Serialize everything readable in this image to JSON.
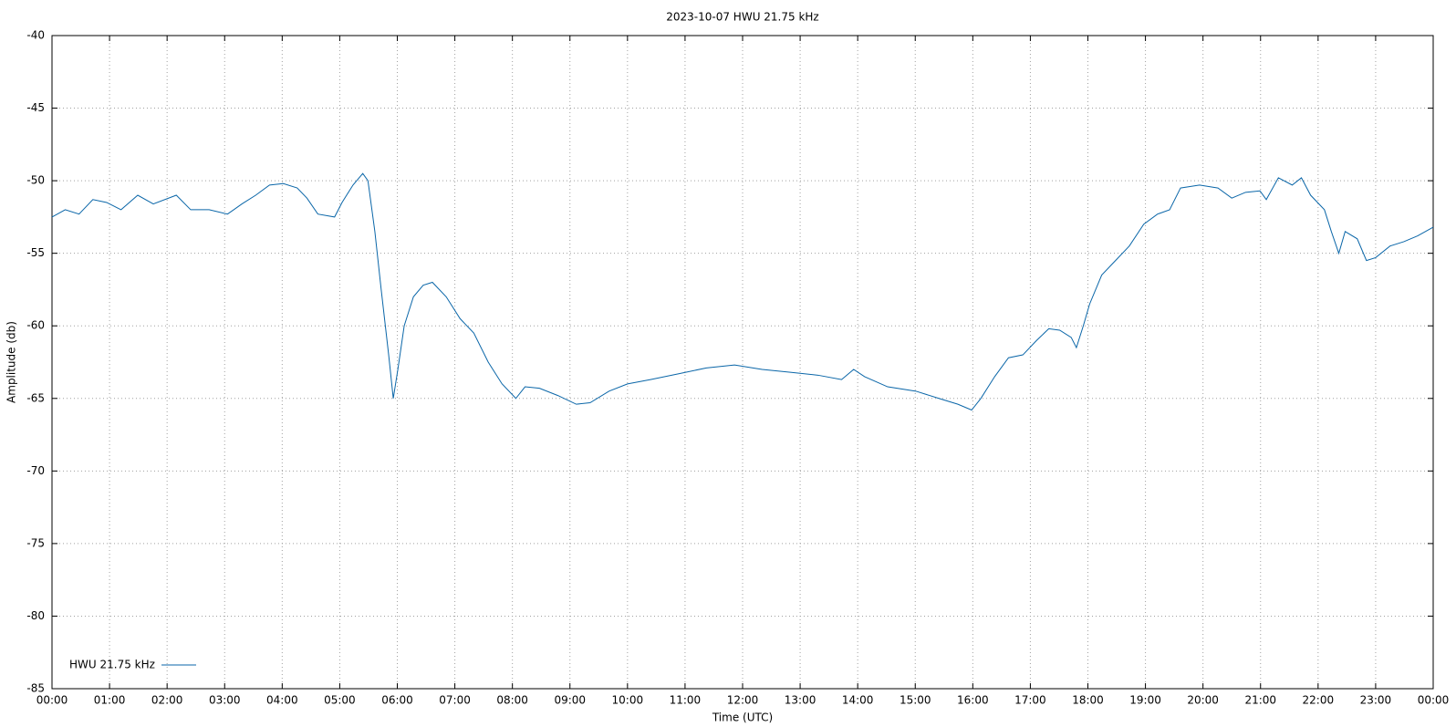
{
  "chart_data": {
    "type": "line",
    "title": "2023-10-07 HWU 21.75 kHz",
    "x_label": "Time (UTC)",
    "y_label": "Amplitude (db)",
    "xlim": [
      0,
      24
    ],
    "ylim": [
      -85,
      -40
    ],
    "xticks": [
      {
        "value": 0,
        "label": "00:00"
      },
      {
        "value": 1,
        "label": "01:00"
      },
      {
        "value": 2,
        "label": "02:00"
      },
      {
        "value": 3,
        "label": "03:00"
      },
      {
        "value": 4,
        "label": "04:00"
      },
      {
        "value": 5,
        "label": "05:00"
      },
      {
        "value": 6,
        "label": "06:00"
      },
      {
        "value": 7,
        "label": "07:00"
      },
      {
        "value": 8,
        "label": "08:00"
      },
      {
        "value": 9,
        "label": "09:00"
      },
      {
        "value": 10,
        "label": "10:00"
      },
      {
        "value": 11,
        "label": "11:00"
      },
      {
        "value": 12,
        "label": "12:00"
      },
      {
        "value": 13,
        "label": "13:00"
      },
      {
        "value": 14,
        "label": "14:00"
      },
      {
        "value": 15,
        "label": "15:00"
      },
      {
        "value": 16,
        "label": "16:00"
      },
      {
        "value": 17,
        "label": "17:00"
      },
      {
        "value": 18,
        "label": "18:00"
      },
      {
        "value": 19,
        "label": "19:00"
      },
      {
        "value": 20,
        "label": "20:00"
      },
      {
        "value": 21,
        "label": "21:00"
      },
      {
        "value": 22,
        "label": "22:00"
      },
      {
        "value": 23,
        "label": "23:00"
      },
      {
        "value": 24,
        "label": "00:00"
      }
    ],
    "yticks": [
      -40,
      -45,
      -50,
      -55,
      -60,
      -65,
      -70,
      -75,
      -80,
      -85
    ],
    "grid": true,
    "legend": "bottom left",
    "x": [
      0,
      0.23,
      0.47,
      0.71,
      0.95,
      1.2,
      1.49,
      1.76,
      2.16,
      2.41,
      2.73,
      3.05,
      3.3,
      3.54,
      3.78,
      4.02,
      4.26,
      4.43,
      4.62,
      4.91,
      5.04,
      5.23,
      5.4,
      5.49,
      5.61,
      5.72,
      5.85,
      5.93,
      6.01,
      6.12,
      6.28,
      6.45,
      6.61,
      6.85,
      7.09,
      7.33,
      7.58,
      7.82,
      8.06,
      8.22,
      8.47,
      8.79,
      9.11,
      9.35,
      9.68,
      10.0,
      10.4,
      10.89,
      11.37,
      11.86,
      12.34,
      12.83,
      13.31,
      13.72,
      13.93,
      14.12,
      14.52,
      15.01,
      15.41,
      15.74,
      15.98,
      16.14,
      16.38,
      16.62,
      16.87,
      17.11,
      17.32,
      17.51,
      17.71,
      17.8,
      17.92,
      18.03,
      18.24,
      18.48,
      18.72,
      18.97,
      19.21,
      19.42,
      19.61,
      19.94,
      20.26,
      20.5,
      20.74,
      20.99,
      21.1,
      21.31,
      21.55,
      21.71,
      21.87,
      22.11,
      22.23,
      22.36,
      22.47,
      22.68,
      22.84,
      23.0,
      23.25,
      23.49,
      23.73,
      24.0
    ],
    "series": [
      {
        "name": "HWU 21.75 kHz",
        "color": "#0a66a8",
        "values": [
          -52.5,
          -52.0,
          -52.3,
          -51.3,
          -51.5,
          -52.0,
          -51.0,
          -51.6,
          -51.0,
          -52.0,
          -52.0,
          -52.3,
          -51.6,
          -51.0,
          -50.3,
          -50.2,
          -50.5,
          -51.2,
          -52.3,
          -52.5,
          -51.5,
          -50.3,
          -49.5,
          -50.0,
          -53.5,
          -57.5,
          -62.0,
          -65.0,
          -63.0,
          -60.0,
          -58.0,
          -57.2,
          -57.0,
          -58.0,
          -59.5,
          -60.5,
          -62.5,
          -64.0,
          -65.0,
          -64.2,
          -64.3,
          -64.8,
          -65.4,
          -65.3,
          -64.5,
          -64.0,
          -63.7,
          -63.3,
          -62.9,
          -62.7,
          -63.0,
          -63.2,
          -63.4,
          -63.7,
          -63.0,
          -63.5,
          -64.2,
          -64.5,
          -65.0,
          -65.4,
          -65.8,
          -65.0,
          -63.5,
          -62.2,
          -62.0,
          -61.0,
          -60.2,
          -60.3,
          -60.8,
          -61.5,
          -60.0,
          -58.5,
          -56.5,
          -55.5,
          -54.5,
          -53.0,
          -52.3,
          -52.0,
          -50.5,
          -50.3,
          -50.5,
          -51.2,
          -50.8,
          -50.7,
          -51.3,
          -49.8,
          -50.3,
          -49.8,
          -51.0,
          -52.0,
          -53.5,
          -55.0,
          -53.5,
          -54.0,
          -55.5,
          -55.3,
          -54.5,
          -54.2,
          -53.8,
          -53.2
        ]
      }
    ]
  }
}
